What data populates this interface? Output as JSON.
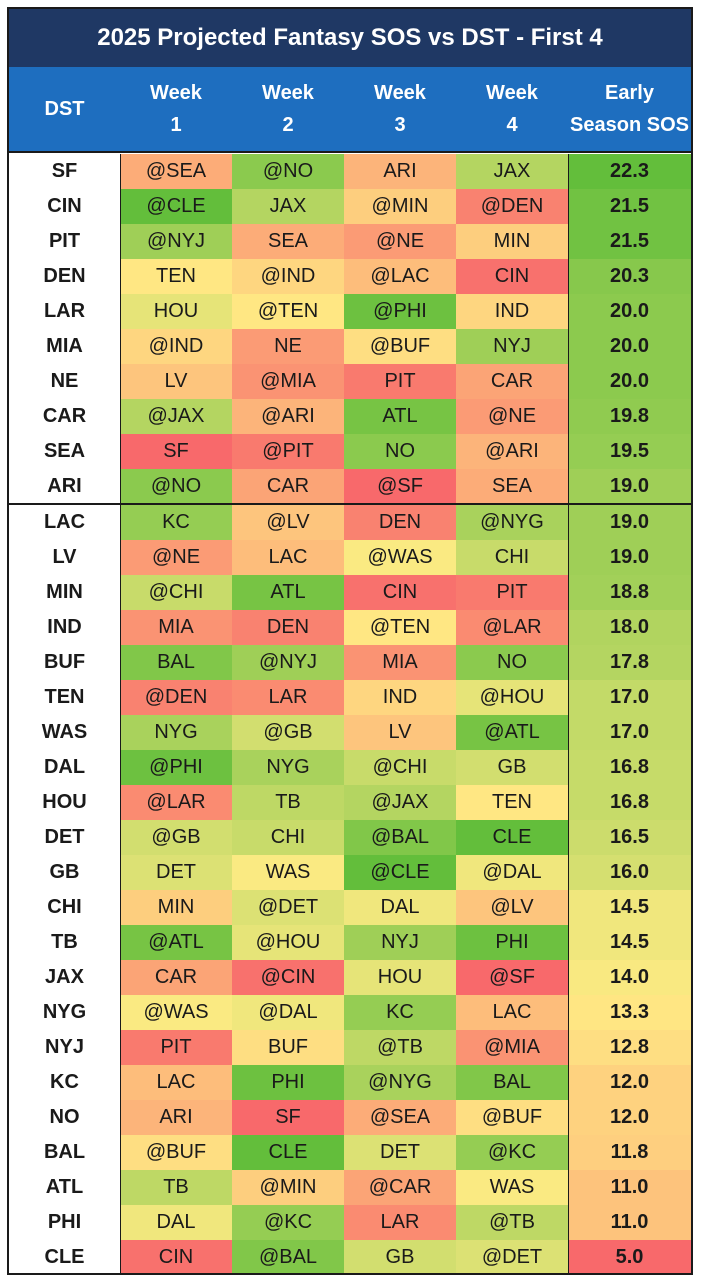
{
  "title": "2025 Projected Fantasy SOS vs DST - First 4",
  "headers": {
    "dst": "DST",
    "week1_top": "Week",
    "week1_bottom": "1",
    "week2_top": "Week",
    "week2_bottom": "2",
    "week3_top": "Week",
    "week3_bottom": "3",
    "week4_top": "Week",
    "week4_bottom": "4",
    "sos_top": "Early",
    "sos_bottom": "Season SOS"
  },
  "colors": {
    "title_bg": "#1f3864",
    "header_bg": "#1e6ebf",
    "scale_low": "#f8696b",
    "scale_mid": "#ffeb84",
    "scale_high": "#63be3b"
  },
  "rows": [
    {
      "team": "SF",
      "w1": "@SEA",
      "w2": "@NO",
      "w3": "ARI",
      "w4": "JAX",
      "sos": "22.3"
    },
    {
      "team": "CIN",
      "w1": "@CLE",
      "w2": "JAX",
      "w3": "@MIN",
      "w4": "@DEN",
      "sos": "21.5"
    },
    {
      "team": "PIT",
      "w1": "@NYJ",
      "w2": "SEA",
      "w3": "@NE",
      "w4": "MIN",
      "sos": "21.5"
    },
    {
      "team": "DEN",
      "w1": "TEN",
      "w2": "@IND",
      "w3": "@LAC",
      "w4": "CIN",
      "sos": "20.3"
    },
    {
      "team": "LAR",
      "w1": "HOU",
      "w2": "@TEN",
      "w3": "@PHI",
      "w4": "IND",
      "sos": "20.0"
    },
    {
      "team": "MIA",
      "w1": "@IND",
      "w2": "NE",
      "w3": "@BUF",
      "w4": "NYJ",
      "sos": "20.0"
    },
    {
      "team": "NE",
      "w1": "LV",
      "w2": "@MIA",
      "w3": "PIT",
      "w4": "CAR",
      "sos": "20.0"
    },
    {
      "team": "CAR",
      "w1": "@JAX",
      "w2": "@ARI",
      "w3": "ATL",
      "w4": "@NE",
      "sos": "19.8"
    },
    {
      "team": "SEA",
      "w1": "SF",
      "w2": "@PIT",
      "w3": "NO",
      "w4": "@ARI",
      "sos": "19.5"
    },
    {
      "team": "ARI",
      "w1": "@NO",
      "w2": "CAR",
      "w3": "@SF",
      "w4": "SEA",
      "sos": "19.0"
    },
    {
      "team": "LAC",
      "w1": "KC",
      "w2": "@LV",
      "w3": "DEN",
      "w4": "@NYG",
      "sos": "19.0"
    },
    {
      "team": "LV",
      "w1": "@NE",
      "w2": "LAC",
      "w3": "@WAS",
      "w4": "CHI",
      "sos": "19.0"
    },
    {
      "team": "MIN",
      "w1": "@CHI",
      "w2": "ATL",
      "w3": "CIN",
      "w4": "PIT",
      "sos": "18.8"
    },
    {
      "team": "IND",
      "w1": "MIA",
      "w2": "DEN",
      "w3": "@TEN",
      "w4": "@LAR",
      "sos": "18.0"
    },
    {
      "team": "BUF",
      "w1": "BAL",
      "w2": "@NYJ",
      "w3": "MIA",
      "w4": "NO",
      "sos": "17.8"
    },
    {
      "team": "TEN",
      "w1": "@DEN",
      "w2": "LAR",
      "w3": "IND",
      "w4": "@HOU",
      "sos": "17.0"
    },
    {
      "team": "WAS",
      "w1": "NYG",
      "w2": "@GB",
      "w3": "LV",
      "w4": "@ATL",
      "sos": "17.0"
    },
    {
      "team": "DAL",
      "w1": "@PHI",
      "w2": "NYG",
      "w3": "@CHI",
      "w4": "GB",
      "sos": "16.8"
    },
    {
      "team": "HOU",
      "w1": "@LAR",
      "w2": "TB",
      "w3": "@JAX",
      "w4": "TEN",
      "sos": "16.8"
    },
    {
      "team": "DET",
      "w1": "@GB",
      "w2": "CHI",
      "w3": "@BAL",
      "w4": "CLE",
      "sos": "16.5"
    },
    {
      "team": "GB",
      "w1": "DET",
      "w2": "WAS",
      "w3": "@CLE",
      "w4": "@DAL",
      "sos": "16.0"
    },
    {
      "team": "CHI",
      "w1": "MIN",
      "w2": "@DET",
      "w3": "DAL",
      "w4": "@LV",
      "sos": "14.5"
    },
    {
      "team": "TB",
      "w1": "@ATL",
      "w2": "@HOU",
      "w3": "NYJ",
      "w4": "PHI",
      "sos": "14.5"
    },
    {
      "team": "JAX",
      "w1": "CAR",
      "w2": "@CIN",
      "w3": "HOU",
      "w4": "@SF",
      "sos": "14.0"
    },
    {
      "team": "NYG",
      "w1": "@WAS",
      "w2": "@DAL",
      "w3": "KC",
      "w4": "LAC",
      "sos": "13.3"
    },
    {
      "team": "NYJ",
      "w1": "PIT",
      "w2": "BUF",
      "w3": "@TB",
      "w4": "@MIA",
      "sos": "12.8"
    },
    {
      "team": "KC",
      "w1": "LAC",
      "w2": "PHI",
      "w3": "@NYG",
      "w4": "BAL",
      "sos": "12.0"
    },
    {
      "team": "NO",
      "w1": "ARI",
      "w2": "SF",
      "w3": "@SEA",
      "w4": "@BUF",
      "sos": "12.0"
    },
    {
      "team": "BAL",
      "w1": "@BUF",
      "w2": "CLE",
      "w3": "DET",
      "w4": "@KC",
      "sos": "11.8"
    },
    {
      "team": "ATL",
      "w1": "TB",
      "w2": "@MIN",
      "w3": "@CAR",
      "w4": "WAS",
      "sos": "11.0"
    },
    {
      "team": "PHI",
      "w1": "DAL",
      "w2": "@KC",
      "w3": "LAR",
      "w4": "@TB",
      "sos": "11.0"
    },
    {
      "team": "CLE",
      "w1": "CIN",
      "w2": "@BAL",
      "w3": "GB",
      "w4": "@DET",
      "sos": "5.0"
    }
  ]
}
